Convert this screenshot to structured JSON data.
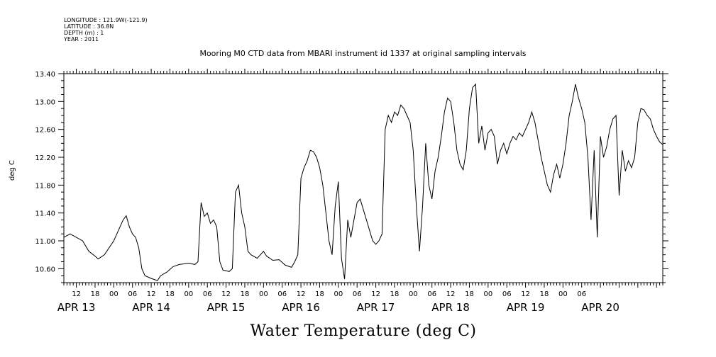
{
  "header": {
    "longitude": "LONGITUDE : 121.9W(-121.9)",
    "latitude": "LATITUDE : 36.8N",
    "depth": "DEPTH (m) : 1",
    "year": "YEAR : 2011"
  },
  "chart_data": {
    "type": "line",
    "title": "Mooring M0 CTD data from MBARI instrument id 1337 at original sampling intervals",
    "xlabel": "Water Temperature (deg C)",
    "ylabel": "deg C",
    "ylim": [
      10.4,
      13.4
    ],
    "xlim": [
      "2011-04-12T08:00",
      "2011-04-20T08:00"
    ],
    "y_ticks": [
      "10.60",
      "11.00",
      "11.40",
      "11.80",
      "12.20",
      "12.60",
      "13.00",
      "13.40"
    ],
    "x_hour_ticks": [
      {
        "t": "2011-04-12T12:00",
        "label": "12"
      },
      {
        "t": "2011-04-12T18:00",
        "label": "18"
      },
      {
        "t": "2011-04-13T00:00",
        "label": "00"
      },
      {
        "t": "2011-04-13T06:00",
        "label": "06"
      },
      {
        "t": "2011-04-13T12:00",
        "label": "12"
      },
      {
        "t": "2011-04-13T18:00",
        "label": "18"
      },
      {
        "t": "2011-04-14T00:00",
        "label": "00"
      },
      {
        "t": "2011-04-14T06:00",
        "label": "06"
      },
      {
        "t": "2011-04-14T12:00",
        "label": "12"
      },
      {
        "t": "2011-04-14T18:00",
        "label": "18"
      },
      {
        "t": "2011-04-15T00:00",
        "label": "00"
      },
      {
        "t": "2011-04-15T06:00",
        "label": "06"
      },
      {
        "t": "2011-04-15T12:00",
        "label": "12"
      },
      {
        "t": "2011-04-15T18:00",
        "label": "18"
      },
      {
        "t": "2011-04-16T00:00",
        "label": "00"
      },
      {
        "t": "2011-04-16T06:00",
        "label": "06"
      },
      {
        "t": "2011-04-16T12:00",
        "label": "12"
      },
      {
        "t": "2011-04-16T18:00",
        "label": "18"
      },
      {
        "t": "2011-04-17T00:00",
        "label": "00"
      },
      {
        "t": "2011-04-17T06:00",
        "label": "06"
      },
      {
        "t": "2011-04-17T12:00",
        "label": "12"
      },
      {
        "t": "2011-04-17T18:00",
        "label": "18"
      },
      {
        "t": "2011-04-18T00:00",
        "label": "00"
      },
      {
        "t": "2011-04-18T06:00",
        "label": "06"
      },
      {
        "t": "2011-04-18T12:00",
        "label": "12"
      },
      {
        "t": "2011-04-18T18:00",
        "label": "18"
      },
      {
        "t": "2011-04-19T00:00",
        "label": "00"
      },
      {
        "t": "2011-04-19T06:00",
        "label": "06"
      }
    ],
    "x_date_labels": [
      {
        "t": "2011-04-12T12:00",
        "label": "APR 13"
      },
      {
        "t": "2011-04-13T12:00",
        "label": "APR 14"
      },
      {
        "t": "2011-04-14T12:00",
        "label": "APR 15"
      },
      {
        "t": "2011-04-15T12:00",
        "label": "APR 16"
      },
      {
        "t": "2011-04-16T12:00",
        "label": "APR 17"
      },
      {
        "t": "2011-04-17T12:00",
        "label": "APR 18"
      },
      {
        "t": "2011-04-18T12:00",
        "label": "APR 19"
      },
      {
        "t": "2011-04-19T12:00",
        "label": "APR 20"
      }
    ],
    "series": [
      {
        "color": "#000000",
        "points": [
          [
            "2011-04-12T08:00",
            11.05
          ],
          [
            "2011-04-12T10:00",
            11.1
          ],
          [
            "2011-04-12T14:00",
            11.0
          ],
          [
            "2011-04-12T16:00",
            10.85
          ],
          [
            "2011-04-12T18:00",
            10.78
          ],
          [
            "2011-04-12T19:00",
            10.74
          ],
          [
            "2011-04-12T21:00",
            10.8
          ],
          [
            "2011-04-13T00:00",
            11.0
          ],
          [
            "2011-04-13T02:00",
            11.2
          ],
          [
            "2011-04-13T03:00",
            11.3
          ],
          [
            "2011-04-13T04:00",
            11.36
          ],
          [
            "2011-04-13T05:00",
            11.2
          ],
          [
            "2011-04-13T06:00",
            11.1
          ],
          [
            "2011-04-13T07:00",
            11.05
          ],
          [
            "2011-04-13T08:00",
            10.9
          ],
          [
            "2011-04-13T09:00",
            10.6
          ],
          [
            "2011-04-13T10:00",
            10.5
          ],
          [
            "2011-04-13T12:00",
            10.46
          ],
          [
            "2011-04-13T14:00",
            10.43
          ],
          [
            "2011-04-13T15:00",
            10.5
          ],
          [
            "2011-04-13T17:00",
            10.55
          ],
          [
            "2011-04-13T19:00",
            10.63
          ],
          [
            "2011-04-13T21:00",
            10.66
          ],
          [
            "2011-04-14T00:00",
            10.68
          ],
          [
            "2011-04-14T02:00",
            10.66
          ],
          [
            "2011-04-14T03:00",
            10.7
          ],
          [
            "2011-04-14T04:00",
            11.55
          ],
          [
            "2011-04-14T05:00",
            11.35
          ],
          [
            "2011-04-14T06:00",
            11.4
          ],
          [
            "2011-04-14T07:00",
            11.25
          ],
          [
            "2011-04-14T08:00",
            11.3
          ],
          [
            "2011-04-14T09:00",
            11.2
          ],
          [
            "2011-04-14T10:00",
            10.7
          ],
          [
            "2011-04-14T11:00",
            10.58
          ],
          [
            "2011-04-14T13:00",
            10.56
          ],
          [
            "2011-04-14T14:00",
            10.6
          ],
          [
            "2011-04-14T15:00",
            11.7
          ],
          [
            "2011-04-14T16:00",
            11.8
          ],
          [
            "2011-04-14T17:00",
            11.4
          ],
          [
            "2011-04-14T18:00",
            11.2
          ],
          [
            "2011-04-14T19:00",
            10.85
          ],
          [
            "2011-04-14T20:00",
            10.8
          ],
          [
            "2011-04-14T22:00",
            10.75
          ],
          [
            "2011-04-15T00:00",
            10.85
          ],
          [
            "2011-04-15T01:00",
            10.78
          ],
          [
            "2011-04-15T03:00",
            10.72
          ],
          [
            "2011-04-15T05:00",
            10.73
          ],
          [
            "2011-04-15T07:00",
            10.65
          ],
          [
            "2011-04-15T09:00",
            10.62
          ],
          [
            "2011-04-15T10:00",
            10.7
          ],
          [
            "2011-04-15T11:00",
            10.8
          ],
          [
            "2011-04-15T12:00",
            11.9
          ],
          [
            "2011-04-15T13:00",
            12.05
          ],
          [
            "2011-04-15T14:00",
            12.15
          ],
          [
            "2011-04-15T15:00",
            12.3
          ],
          [
            "2011-04-15T16:00",
            12.28
          ],
          [
            "2011-04-15T17:00",
            12.2
          ],
          [
            "2011-04-15T18:00",
            12.05
          ],
          [
            "2011-04-15T19:00",
            11.8
          ],
          [
            "2011-04-15T20:00",
            11.4
          ],
          [
            "2011-04-15T21:00",
            11.0
          ],
          [
            "2011-04-15T22:00",
            10.8
          ],
          [
            "2011-04-15T23:00",
            11.5
          ],
          [
            "2011-04-16T00:00",
            11.85
          ],
          [
            "2011-04-16T01:00",
            10.75
          ],
          [
            "2011-04-16T02:00",
            10.45
          ],
          [
            "2011-04-16T03:00",
            11.3
          ],
          [
            "2011-04-16T04:00",
            11.05
          ],
          [
            "2011-04-16T05:00",
            11.3
          ],
          [
            "2011-04-16T06:00",
            11.55
          ],
          [
            "2011-04-16T07:00",
            11.6
          ],
          [
            "2011-04-16T08:00",
            11.45
          ],
          [
            "2011-04-16T09:00",
            11.3
          ],
          [
            "2011-04-16T10:00",
            11.15
          ],
          [
            "2011-04-16T11:00",
            11.0
          ],
          [
            "2011-04-16T12:00",
            10.95
          ],
          [
            "2011-04-16T13:00",
            11.0
          ],
          [
            "2011-04-16T14:00",
            11.1
          ],
          [
            "2011-04-16T15:00",
            12.6
          ],
          [
            "2011-04-16T16:00",
            12.8
          ],
          [
            "2011-04-16T17:00",
            12.7
          ],
          [
            "2011-04-16T18:00",
            12.85
          ],
          [
            "2011-04-16T19:00",
            12.8
          ],
          [
            "2011-04-16T20:00",
            12.95
          ],
          [
            "2011-04-16T21:00",
            12.9
          ],
          [
            "2011-04-16T22:00",
            12.8
          ],
          [
            "2011-04-16T23:00",
            12.7
          ],
          [
            "2011-04-17T00:00",
            12.3
          ],
          [
            "2011-04-17T01:00",
            11.5
          ],
          [
            "2011-04-17T02:00",
            10.85
          ],
          [
            "2011-04-17T03:00",
            11.5
          ],
          [
            "2011-04-17T04:00",
            12.4
          ],
          [
            "2011-04-17T05:00",
            11.8
          ],
          [
            "2011-04-17T06:00",
            11.6
          ],
          [
            "2011-04-17T07:00",
            12.0
          ],
          [
            "2011-04-17T08:00",
            12.2
          ],
          [
            "2011-04-17T09:00",
            12.5
          ],
          [
            "2011-04-17T10:00",
            12.85
          ],
          [
            "2011-04-17T11:00",
            13.05
          ],
          [
            "2011-04-17T12:00",
            13.0
          ],
          [
            "2011-04-17T13:00",
            12.7
          ],
          [
            "2011-04-17T14:00",
            12.3
          ],
          [
            "2011-04-17T15:00",
            12.1
          ],
          [
            "2011-04-17T16:00",
            12.02
          ],
          [
            "2011-04-17T17:00",
            12.3
          ],
          [
            "2011-04-17T18:00",
            12.9
          ],
          [
            "2011-04-17T19:00",
            13.2
          ],
          [
            "2011-04-17T20:00",
            13.25
          ],
          [
            "2011-04-17T21:00",
            12.4
          ],
          [
            "2011-04-17T22:00",
            12.65
          ],
          [
            "2011-04-17T23:00",
            12.3
          ],
          [
            "2011-04-18T00:00",
            12.55
          ],
          [
            "2011-04-18T01:00",
            12.6
          ],
          [
            "2011-04-18T02:00",
            12.5
          ],
          [
            "2011-04-18T03:00",
            12.1
          ],
          [
            "2011-04-18T04:00",
            12.3
          ],
          [
            "2011-04-18T05:00",
            12.4
          ],
          [
            "2011-04-18T06:00",
            12.25
          ],
          [
            "2011-04-18T07:00",
            12.4
          ],
          [
            "2011-04-18T08:00",
            12.5
          ],
          [
            "2011-04-18T09:00",
            12.45
          ],
          [
            "2011-04-18T10:00",
            12.55
          ],
          [
            "2011-04-18T11:00",
            12.5
          ],
          [
            "2011-04-18T12:00",
            12.6
          ],
          [
            "2011-04-18T13:00",
            12.7
          ],
          [
            "2011-04-18T14:00",
            12.85
          ],
          [
            "2011-04-18T15:00",
            12.7
          ],
          [
            "2011-04-18T16:00",
            12.45
          ],
          [
            "2011-04-18T17:00",
            12.2
          ],
          [
            "2011-04-18T18:00",
            12.0
          ],
          [
            "2011-04-18T19:00",
            11.8
          ],
          [
            "2011-04-18T20:00",
            11.7
          ],
          [
            "2011-04-18T21:00",
            11.95
          ],
          [
            "2011-04-18T22:00",
            12.1
          ],
          [
            "2011-04-18T23:00",
            11.9
          ],
          [
            "2011-04-19T00:00",
            12.1
          ],
          [
            "2011-04-19T01:00",
            12.4
          ],
          [
            "2011-04-19T02:00",
            12.8
          ],
          [
            "2011-04-19T03:00",
            13.0
          ],
          [
            "2011-04-19T04:00",
            13.25
          ],
          [
            "2011-04-19T05:00",
            13.05
          ],
          [
            "2011-04-19T06:00",
            12.9
          ],
          [
            "2011-04-19T07:00",
            12.7
          ],
          [
            "2011-04-19T08:00",
            12.2
          ],
          [
            "2011-04-19T09:00",
            11.3
          ],
          [
            "2011-04-19T10:00",
            12.3
          ],
          [
            "2011-04-19T11:00",
            11.05
          ],
          [
            "2011-04-19T12:00",
            12.5
          ],
          [
            "2011-04-19T13:00",
            12.2
          ],
          [
            "2011-04-19T14:00",
            12.35
          ],
          [
            "2011-04-19T15:00",
            12.6
          ],
          [
            "2011-04-19T16:00",
            12.75
          ],
          [
            "2011-04-19T17:00",
            12.8
          ],
          [
            "2011-04-19T18:00",
            11.65
          ],
          [
            "2011-04-19T19:00",
            12.3
          ],
          [
            "2011-04-19T20:00",
            12.0
          ],
          [
            "2011-04-19T21:00",
            12.15
          ],
          [
            "2011-04-19T22:00",
            12.05
          ],
          [
            "2011-04-19T23:00",
            12.2
          ],
          [
            "2011-04-20T00:00",
            12.7
          ],
          [
            "2011-04-20T01:00",
            12.9
          ],
          [
            "2011-04-20T02:00",
            12.88
          ],
          [
            "2011-04-20T03:00",
            12.8
          ],
          [
            "2011-04-20T04:00",
            12.75
          ],
          [
            "2011-04-20T05:00",
            12.6
          ],
          [
            "2011-04-20T06:00",
            12.5
          ],
          [
            "2011-04-20T07:00",
            12.42
          ],
          [
            "2011-04-20T08:00",
            12.38
          ]
        ]
      }
    ]
  }
}
